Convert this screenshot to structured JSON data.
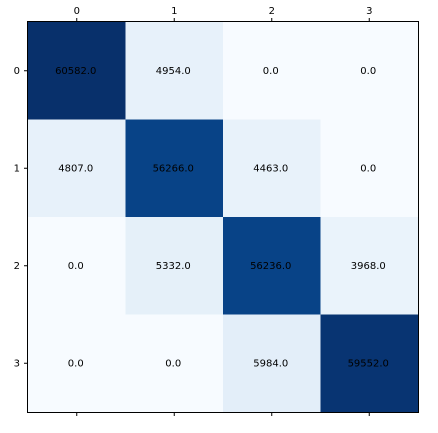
{
  "chart_data": {
    "type": "heatmap",
    "title": "",
    "xlabel": "",
    "ylabel": "",
    "x_tick_labels": [
      "0",
      "1",
      "2",
      "3"
    ],
    "y_tick_labels": [
      "0",
      "1",
      "2",
      "3"
    ],
    "x_ticks_position": "top and bottom",
    "grid": false,
    "colormap": "Blues",
    "value_range": [
      0,
      60582
    ],
    "matrix": [
      [
        60582,
        4954,
        0,
        0
      ],
      [
        4807,
        56266,
        4463,
        0
      ],
      [
        0,
        5332,
        56236,
        3968
      ],
      [
        0,
        0,
        5984,
        59552
      ]
    ],
    "cell_labels": [
      [
        "60582.0",
        "4954.0",
        "0.0",
        "0.0"
      ],
      [
        "4807.0",
        "56266.0",
        "4463.0",
        "0.0"
      ],
      [
        "0.0",
        "5332.0",
        "56236.0",
        "3968.0"
      ],
      [
        "0.0",
        "0.0",
        "5984.0",
        "59552.0"
      ]
    ]
  },
  "colors": {
    "low": "#f7fbff",
    "high": "#08306b",
    "text": "#000000",
    "axis": "#000000"
  }
}
